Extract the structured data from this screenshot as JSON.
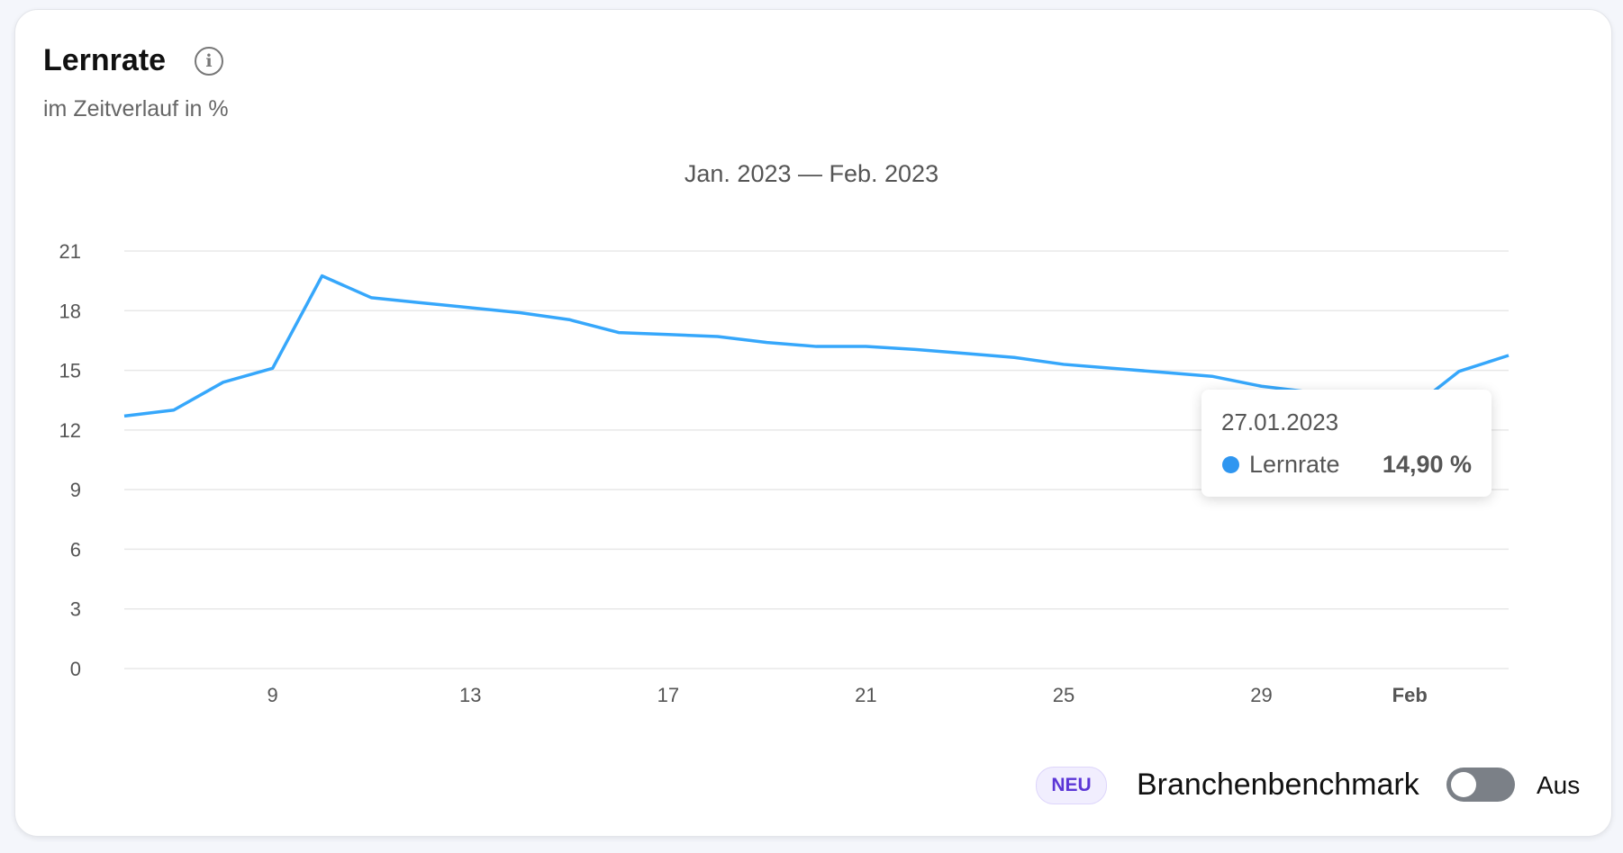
{
  "header": {
    "title": "Lernrate",
    "subtitle": "im Zeitverlauf in %",
    "info_icon": "info-icon"
  },
  "chart_data": {
    "type": "line",
    "title": "Jan. 2023 — Feb. 2023",
    "xlabel": "",
    "ylabel": "",
    "x": [
      "2023-01-06",
      "2023-01-07",
      "2023-01-08",
      "2023-01-09",
      "2023-01-10",
      "2023-01-11",
      "2023-01-12",
      "2023-01-13",
      "2023-01-14",
      "2023-01-15",
      "2023-01-16",
      "2023-01-17",
      "2023-01-18",
      "2023-01-19",
      "2023-01-20",
      "2023-01-21",
      "2023-01-22",
      "2023-01-23",
      "2023-01-24",
      "2023-01-25",
      "2023-01-26",
      "2023-01-27",
      "2023-01-28",
      "2023-01-29",
      "2023-01-30",
      "2023-01-31",
      "2023-02-01",
      "2023-02-02",
      "2023-02-03"
    ],
    "series": [
      {
        "name": "Lernrate",
        "color": "#36a7fb",
        "values": [
          12.7,
          13.0,
          14.4,
          15.1,
          19.75,
          18.65,
          18.4,
          18.15,
          17.9,
          17.55,
          16.9,
          16.8,
          16.7,
          16.4,
          16.2,
          16.2,
          16.05,
          15.85,
          15.65,
          15.3,
          15.1,
          14.9,
          14.7,
          14.2,
          13.9,
          13.4,
          13.0,
          14.95,
          15.75
        ]
      }
    ],
    "ylim": [
      0,
      21
    ],
    "yticks": [
      "0",
      "3",
      "6",
      "9",
      "12",
      "15",
      "18",
      "21"
    ],
    "xticks": [
      {
        "label": "9",
        "date": "2023-01-09"
      },
      {
        "label": "13",
        "date": "2023-01-13"
      },
      {
        "label": "17",
        "date": "2023-01-17"
      },
      {
        "label": "21",
        "date": "2023-01-21"
      },
      {
        "label": "25",
        "date": "2023-01-25"
      },
      {
        "label": "29",
        "date": "2023-01-29"
      },
      {
        "label": "Feb",
        "date": "2023-02-01",
        "bold": true
      }
    ],
    "grid": true,
    "tooltip": {
      "date": "27.01.2023",
      "series": "Lernrate",
      "value": "14,90 %",
      "dot_color": "#2f96f0"
    }
  },
  "footer": {
    "badge": "NEU",
    "benchmark_label": "Branchenbenchmark",
    "toggle_state": "Aus",
    "toggle_on": false
  }
}
